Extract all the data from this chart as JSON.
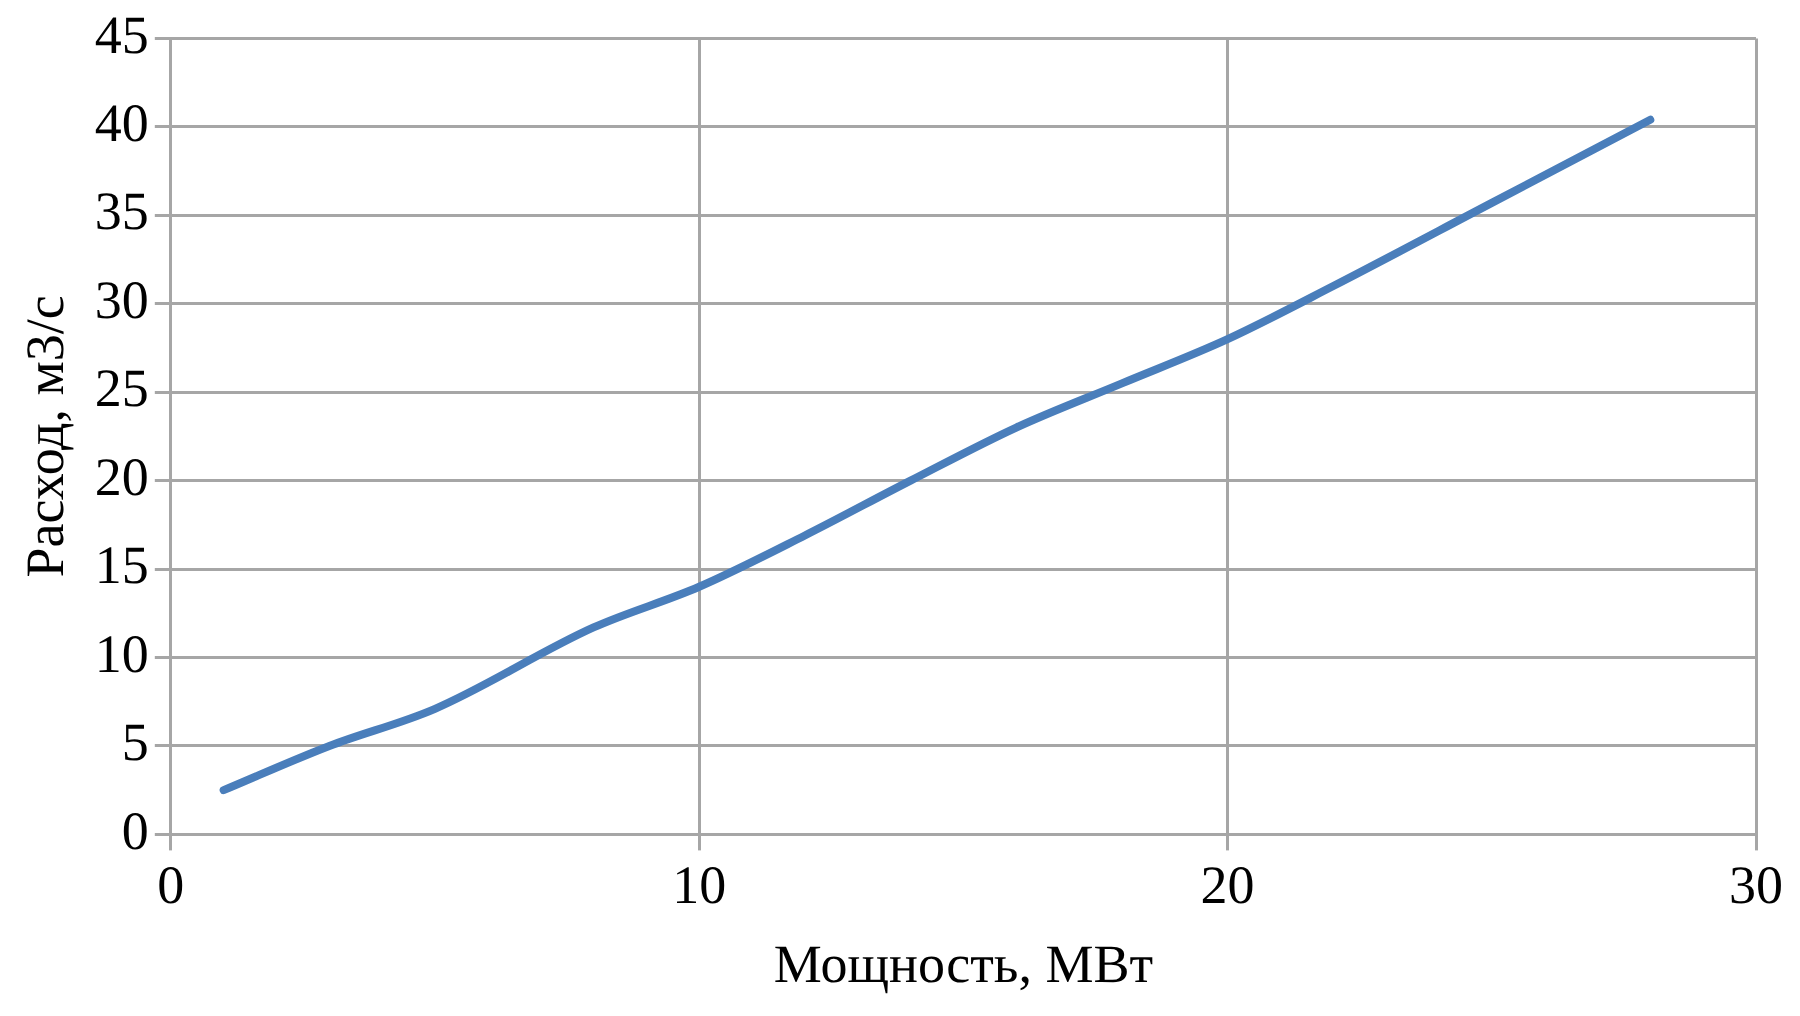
{
  "chart_data": {
    "type": "line",
    "xlabel": "Мощность, МВт",
    "ylabel": "Расход, м3/с",
    "x": [
      1,
      3,
      5,
      8,
      10,
      12,
      14,
      16,
      18,
      20,
      22,
      25,
      28
    ],
    "series": [
      {
        "color": "#4a7ebb",
        "values": [
          2.5,
          5,
          7.1,
          11.7,
          14,
          16.9,
          20,
          23,
          25.5,
          28,
          31,
          35.7,
          40.4
        ]
      }
    ],
    "xlim": [
      0,
      30
    ],
    "xticks": [
      0,
      10,
      20,
      30
    ],
    "ylim": [
      0,
      45
    ],
    "yticks": [
      0,
      5,
      10,
      15,
      20,
      25,
      30,
      35,
      40,
      45
    ],
    "grid": true,
    "legend": false,
    "marker": "none",
    "line_style": "solid"
  }
}
